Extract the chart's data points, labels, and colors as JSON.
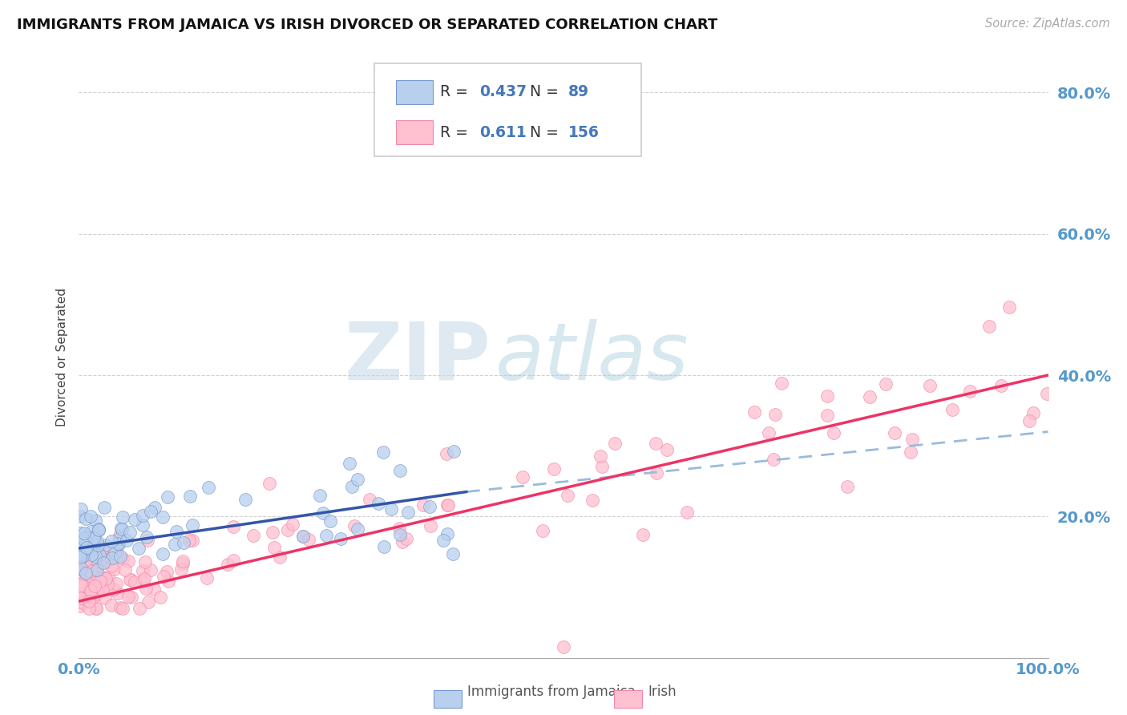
{
  "title": "IMMIGRANTS FROM JAMAICA VS IRISH DIVORCED OR SEPARATED CORRELATION CHART",
  "source_text": "Source: ZipAtlas.com",
  "ylabel": "Divorced or Separated",
  "watermark_text": "ZIP",
  "watermark_text2": "atlas",
  "background_color": "#ffffff",
  "grid_color": "#cccccc",
  "blue_line_color": "#3355aa",
  "pink_line_color": "#ee3366",
  "blue_scatter_face": "#b8d0ee",
  "pink_scatter_face": "#ffc0d0",
  "blue_scatter_edge": "#7799cc",
  "pink_scatter_edge": "#ee88aa",
  "dashed_color": "#99bbdd",
  "tick_color": "#5599cc",
  "legend_color": "#4477bb",
  "legend_box_edge": "#cccccc",
  "blue_R": "0.437",
  "blue_N": "89",
  "pink_R": "0.611",
  "pink_N": "156",
  "legend_label_blue": "Immigrants from Jamaica",
  "legend_label_pink": "Irish",
  "ytick_labels": [
    "20.0%",
    "40.0%",
    "60.0%",
    "80.0%"
  ],
  "ytick_values": [
    20,
    40,
    60,
    80
  ],
  "xtick_labels": [
    "0.0%",
    "100.0%"
  ],
  "xtick_values": [
    0,
    100
  ],
  "xlim": [
    0,
    100
  ],
  "ylim": [
    0,
    85
  ],
  "blue_trend_x0": 0,
  "blue_trend_y0": 15.5,
  "blue_trend_x1": 40,
  "blue_trend_y1": 23.5,
  "blue_dash_x0": 40,
  "blue_dash_y0": 23.5,
  "blue_dash_x1": 100,
  "blue_dash_y1": 32.0,
  "pink_trend_x0": 0,
  "pink_trend_y0": 8.0,
  "pink_trend_x1": 100,
  "pink_trend_y1": 40.0
}
